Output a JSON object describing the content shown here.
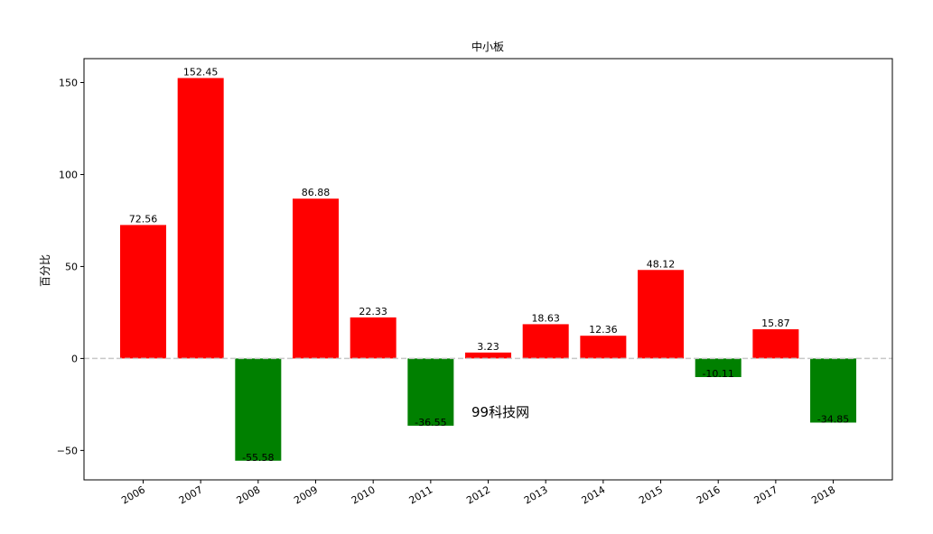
{
  "chart_data": {
    "type": "bar",
    "title": "中小板",
    "ylabel": "百分比",
    "xlabel": "",
    "categories": [
      "2006",
      "2007",
      "2008",
      "2009",
      "2010",
      "2011",
      "2012",
      "2013",
      "2014",
      "2015",
      "2016",
      "2017",
      "2018"
    ],
    "values": [
      72.56,
      152.45,
      -55.58,
      86.88,
      22.33,
      -36.55,
      3.23,
      18.63,
      12.36,
      48.12,
      -10.11,
      15.87,
      -34.85
    ],
    "ylim": [
      -66,
      163
    ],
    "yticks": [
      -50,
      0,
      50,
      100,
      150
    ],
    "ytick_labels": [
      "−50",
      "0",
      "50",
      "100",
      "150"
    ],
    "positive_color": "#ff0000",
    "negative_color": "#008000",
    "zero_line": "dashed",
    "grid": false,
    "annotation": "99科技网"
  }
}
